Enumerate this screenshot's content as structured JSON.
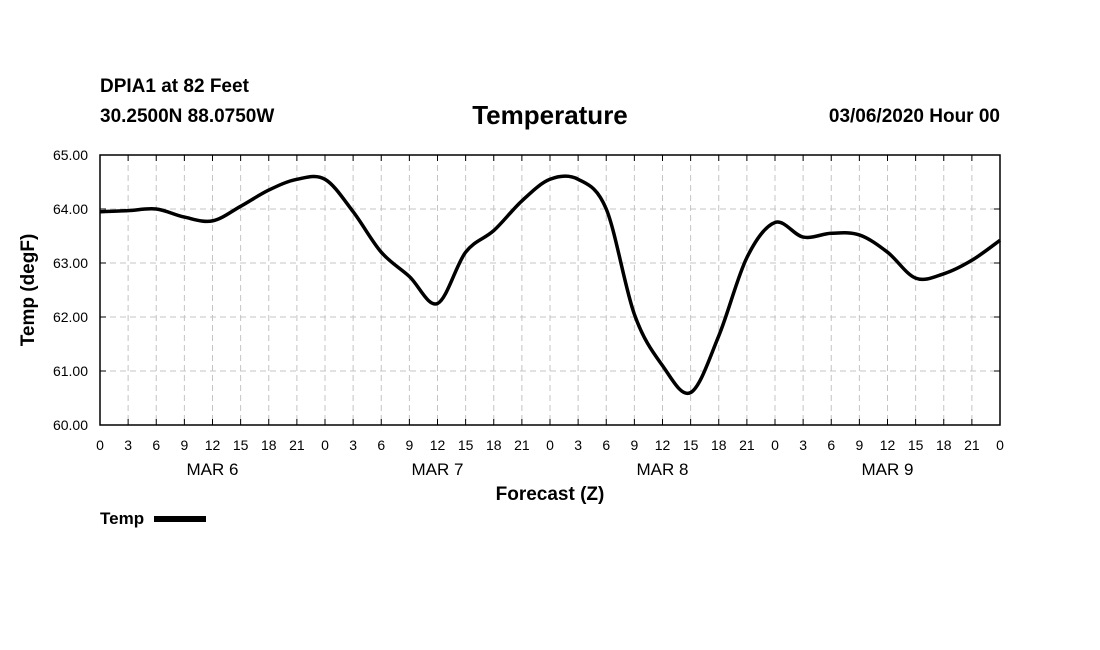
{
  "header": {
    "station": "DPIA1 at 82 Feet",
    "coords": "30.2500N 88.0750W",
    "title": "Temperature",
    "timestamp": "03/06/2020 Hour 00"
  },
  "legend": {
    "label": "Temp"
  },
  "chart_data": {
    "type": "line",
    "title": "Temperature",
    "xlabel": "Forecast (Z)",
    "ylabel": "Temp (degF)",
    "xlim": [
      0,
      96
    ],
    "ylim": [
      60,
      65
    ],
    "y_ticks": [
      "60.00",
      "61.00",
      "62.00",
      "63.00",
      "64.00",
      "65.00"
    ],
    "x_tick_labels": [
      "0",
      "3",
      "6",
      "9",
      "12",
      "15",
      "18",
      "21",
      "0",
      "3",
      "6",
      "9",
      "12",
      "15",
      "18",
      "21",
      "0",
      "3",
      "6",
      "9",
      "12",
      "15",
      "18",
      "21",
      "0",
      "3",
      "6",
      "9",
      "12",
      "15",
      "18",
      "21",
      "0"
    ],
    "day_labels": [
      "MAR 6",
      "MAR 7",
      "MAR 8",
      "MAR 9"
    ],
    "grid": true,
    "legend_position": "bottom-left",
    "line_color": "#000000",
    "series": [
      {
        "name": "Temp",
        "x": [
          0,
          3,
          6,
          9,
          12,
          15,
          18,
          21,
          24,
          27,
          30,
          33,
          36,
          39,
          42,
          45,
          48,
          51,
          54,
          57,
          60,
          63,
          66,
          69,
          72,
          75,
          78,
          81,
          84,
          87,
          90,
          93,
          96
        ],
        "values": [
          63.95,
          63.97,
          64.0,
          63.85,
          63.78,
          64.05,
          64.35,
          64.55,
          64.55,
          63.95,
          63.2,
          62.75,
          62.25,
          63.2,
          63.6,
          64.15,
          64.55,
          64.55,
          64.0,
          62.05,
          61.1,
          60.6,
          61.65,
          63.1,
          63.75,
          63.48,
          63.55,
          63.52,
          63.2,
          62.72,
          62.8,
          63.05,
          63.42
        ]
      }
    ]
  }
}
